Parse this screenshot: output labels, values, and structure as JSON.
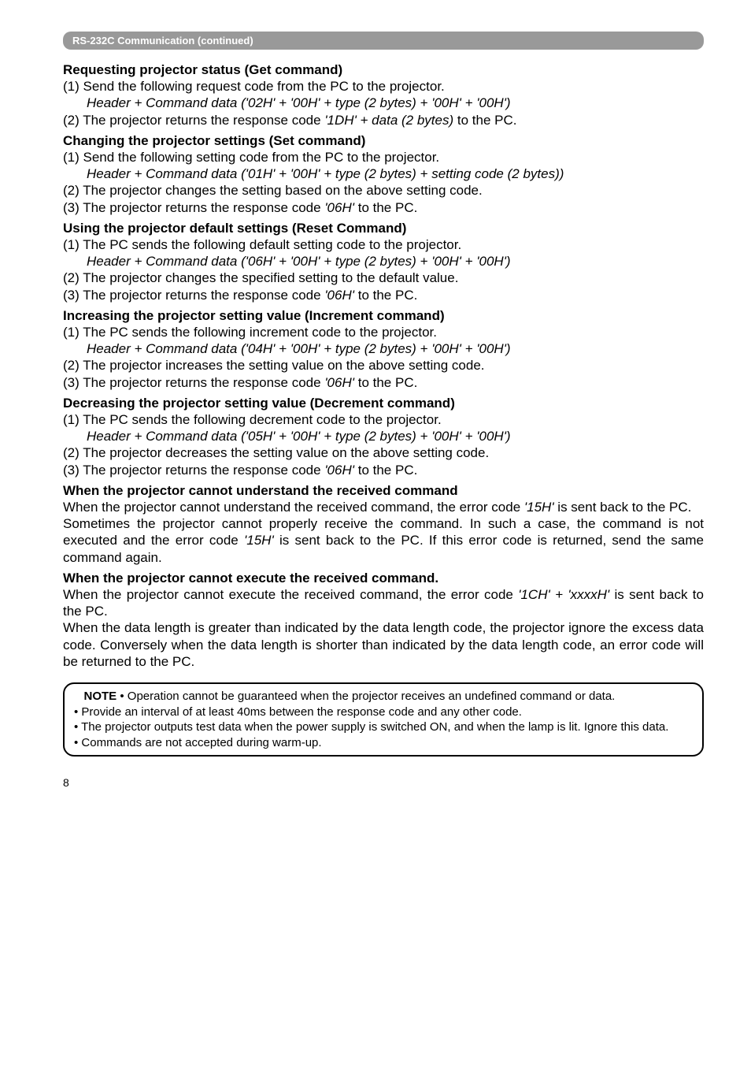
{
  "section_header": "RS-232C Communication (continued)",
  "sections": {
    "s1": {
      "heading": "Requesting projector status (Get command)",
      "line1": "(1) Send the following request code from the PC to the projector.",
      "line1_italic": "Header + Command data ('02H' + '00H' + type (2 bytes) + '00H' + '00H')",
      "line2_a": "(2) The projector returns the response code ",
      "line2_i": "'1DH' + data (2 bytes)",
      "line2_b": " to the PC."
    },
    "s2": {
      "heading": "Changing the projector settings (Set command)",
      "line1": "(1) Send the following setting code from the PC to the projector.",
      "line1_italic": "Header + Command data ('01H' + '00H' + type (2 bytes) + setting code (2 bytes))",
      "line2": "(2) The projector changes the setting based on the above setting code.",
      "line3_a": "(3) The projector returns the response code ",
      "line3_i": "'06H'",
      "line3_b": " to the PC."
    },
    "s3": {
      "heading": "Using the projector default settings (Reset Command)",
      "line1": "(1) The PC sends the following default setting code to the projector.",
      "line1_italic": "Header + Command data ('06H' + '00H' + type (2 bytes) + '00H' + '00H')",
      "line2": "(2) The projector changes the specified setting to the default value.",
      "line3_a": "(3) The projector returns the response code ",
      "line3_i": "'06H'",
      "line3_b": " to the PC."
    },
    "s4": {
      "heading": "Increasing the projector setting value (Increment command)",
      "line1": "(1) The PC sends the following increment code to the projector.",
      "line1_italic": "Header + Command data ('04H' + '00H' + type (2 bytes) + '00H' + '00H')",
      "line2": "(2) The projector increases the setting value on the above setting code.",
      "line3_a": "(3) The projector returns the response code ",
      "line3_i": "'06H'",
      "line3_b": " to the PC."
    },
    "s5": {
      "heading": "Decreasing the projector setting value (Decrement command)",
      "line1": "(1) The PC sends the following decrement code to the projector.",
      "line1_italic": "Header + Command data ('05H' + '00H' + type (2 bytes) + '00H' + '00H')",
      "line2": "(2) The projector decreases the setting value on the above setting code.",
      "line3_a": "(3) The projector returns the response code ",
      "line3_i": "'06H'",
      "line3_b": " to the PC."
    },
    "s6": {
      "heading": "When the projector cannot understand the received command",
      "p1_a": "When the projector cannot understand the received command, the error code ",
      "p1_i": "'15H'",
      "p1_b": " is sent back to the PC.",
      "p2_a": "Sometimes the projector cannot properly receive the command. In such a case, the command is not executed and the error code ",
      "p2_i": "'15H'",
      "p2_b": " is sent back to the PC. If this error code is returned, send the same command again."
    },
    "s7": {
      "heading": "When the projector cannot execute the received command.",
      "p1_a": "When the projector cannot execute the received command, the error code ",
      "p1_i": "'1CH' + 'xxxxH'",
      "p1_b": " is sent back to the PC.",
      "p2": "When the data length is greater than indicated by the data length code, the projector ignore the excess data code. Conversely when the data length is shorter than indicated by the data length code, an error code will be returned to the PC."
    }
  },
  "note": {
    "label": "NOTE",
    "l1": " • Operation cannot be guaranteed when the projector receives an undefined command or data.",
    "l2": "• Provide an interval of at least 40ms between the response code and any other code.",
    "l3": "• The projector outputs test data when the power supply is switched ON, and when the lamp is lit. Ignore this data.",
    "l4": "• Commands are not accepted during warm-up."
  },
  "page_number": "8"
}
